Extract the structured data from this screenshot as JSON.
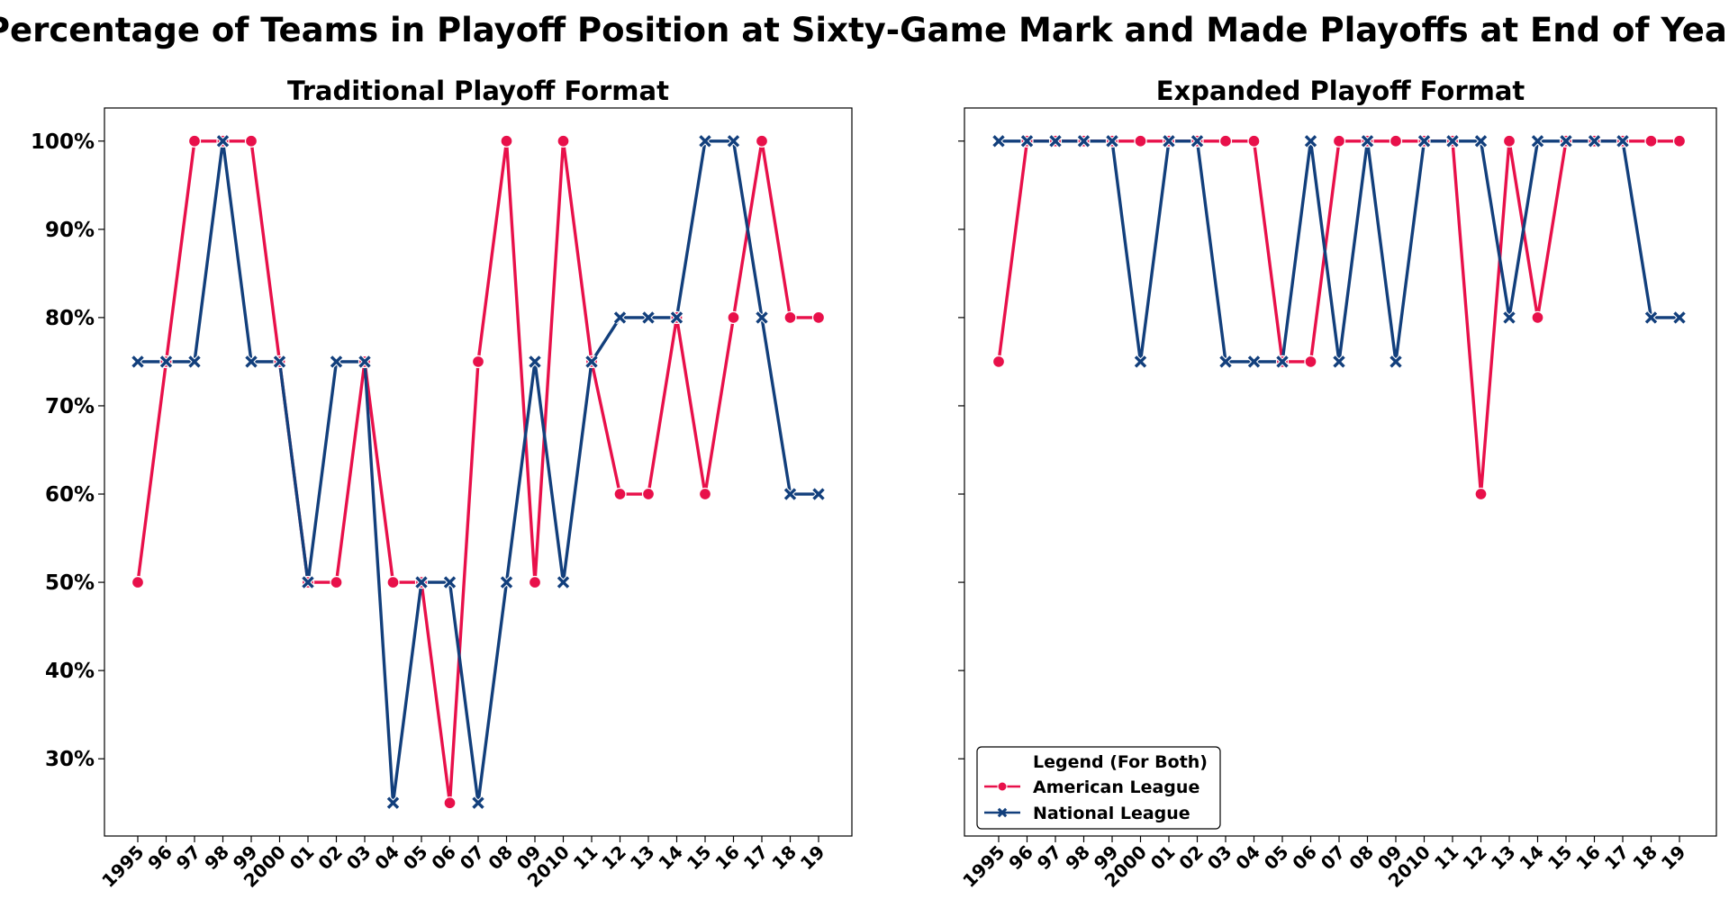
{
  "title": "Percentage of Teams in Playoff Position at Sixty-Game Mark and Made Playoffs at End of Year",
  "colors": {
    "american": "#e8104a",
    "national": "#123f7c"
  },
  "legend": {
    "title": "Legend (For Both)",
    "placement": "lower-left of right panel",
    "entries": [
      "American League",
      "National League"
    ]
  },
  "chart_data": [
    {
      "type": "line",
      "title": "Traditional Playoff Format",
      "categories": [
        "1995",
        "96",
        "97",
        "98",
        "99",
        "2000",
        "01",
        "02",
        "03",
        "04",
        "05",
        "06",
        "07",
        "08",
        "09",
        "2010",
        "11",
        "12",
        "13",
        "14",
        "15",
        "16",
        "17",
        "18",
        "19"
      ],
      "ylim": [
        21.25,
        103.75
      ],
      "yticks": [
        30,
        40,
        50,
        60,
        70,
        80,
        90,
        100
      ],
      "ytick_labels": [
        "30%",
        "40%",
        "50%",
        "60%",
        "70%",
        "80%",
        "90%",
        "100%"
      ],
      "series": [
        {
          "name": "American League",
          "marker": "circle",
          "values": [
            50,
            75,
            100,
            100,
            100,
            75,
            50,
            50,
            75,
            50,
            50,
            25,
            75,
            100,
            50,
            100,
            75,
            60,
            60,
            80,
            60,
            80,
            100,
            80,
            80
          ]
        },
        {
          "name": "National League",
          "marker": "x",
          "values": [
            75,
            75,
            75,
            100,
            75,
            75,
            50,
            75,
            75,
            25,
            50,
            50,
            25,
            50,
            75,
            50,
            75,
            80,
            80,
            80,
            100,
            100,
            80,
            60,
            60
          ]
        }
      ]
    },
    {
      "type": "line",
      "title": "Expanded Playoff Format",
      "categories": [
        "1995",
        "96",
        "97",
        "98",
        "99",
        "2000",
        "01",
        "02",
        "03",
        "04",
        "05",
        "06",
        "07",
        "08",
        "09",
        "2010",
        "11",
        "12",
        "13",
        "14",
        "15",
        "16",
        "17",
        "18",
        "19"
      ],
      "ylim": [
        21.25,
        103.75
      ],
      "yticks": [
        30,
        40,
        50,
        60,
        70,
        80,
        90,
        100
      ],
      "ytick_labels": [
        "",
        "",
        "",
        "",
        "",
        "",
        "",
        ""
      ],
      "series": [
        {
          "name": "American League",
          "marker": "circle",
          "values": [
            75,
            100,
            100,
            100,
            100,
            100,
            100,
            100,
            100,
            100,
            75,
            75,
            100,
            100,
            100,
            100,
            100,
            60,
            100,
            80,
            100,
            100,
            100,
            100,
            100
          ]
        },
        {
          "name": "National League",
          "marker": "x",
          "values": [
            100,
            100,
            100,
            100,
            100,
            75,
            100,
            100,
            75,
            75,
            75,
            100,
            75,
            100,
            75,
            100,
            100,
            100,
            80,
            100,
            100,
            100,
            100,
            80,
            80
          ]
        }
      ]
    }
  ]
}
